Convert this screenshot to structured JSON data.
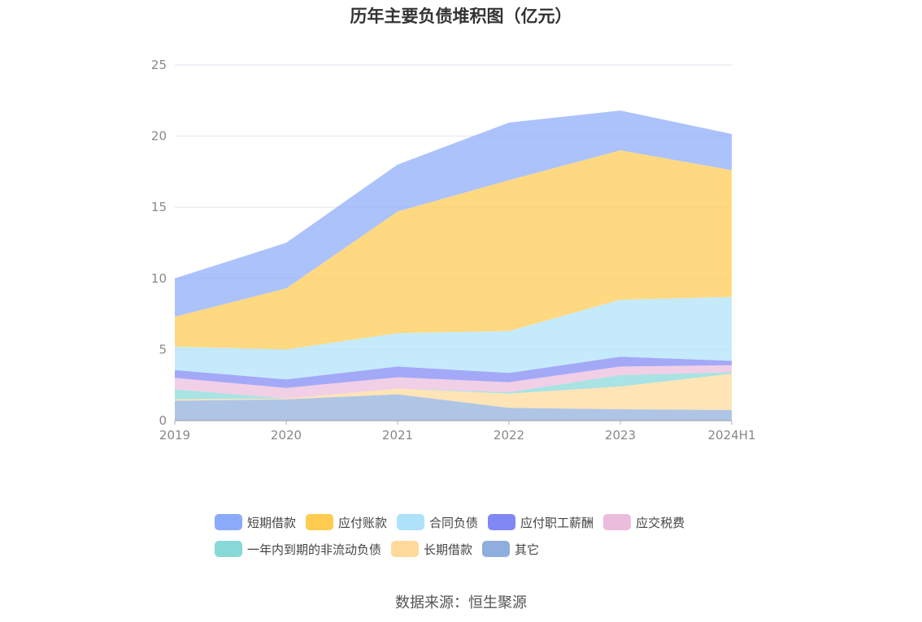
{
  "chart_data": {
    "type": "area",
    "stacked": true,
    "title": "历年主要负债堆积图（亿元）",
    "categories": [
      "2019",
      "2020",
      "2021",
      "2022",
      "2023",
      "2024H1"
    ],
    "ylim": [
      0,
      25
    ],
    "yticks": [
      0,
      5,
      10,
      15,
      20,
      25
    ],
    "grid": true,
    "legend_position": "bottom",
    "series": [
      {
        "name": "其它",
        "color": "#8faedd",
        "values": [
          1.4,
          1.5,
          1.85,
          0.9,
          0.8,
          0.75
        ]
      },
      {
        "name": "长期借款",
        "color": "#ffd99a",
        "values": [
          0.1,
          0.05,
          0.4,
          1.0,
          1.6,
          2.55
        ]
      },
      {
        "name": "一年内到期的非流动负债",
        "color": "#88d8d8",
        "values": [
          0.7,
          0.0,
          0.0,
          0.1,
          0.8,
          0.1
        ]
      },
      {
        "name": "应交税费",
        "color": "#ecbcdc",
        "values": [
          0.8,
          0.75,
          0.8,
          0.7,
          0.6,
          0.5
        ]
      },
      {
        "name": "应付职工薪酬",
        "color": "#8088f4",
        "values": [
          0.55,
          0.6,
          0.75,
          0.65,
          0.7,
          0.3
        ]
      },
      {
        "name": "合同负债",
        "color": "#aee2fa",
        "values": [
          1.65,
          2.1,
          2.35,
          2.95,
          4.0,
          4.5
        ]
      },
      {
        "name": "应付账款",
        "color": "#ffcb50",
        "values": [
          2.1,
          4.3,
          8.55,
          10.6,
          10.5,
          8.9
        ]
      },
      {
        "name": "短期借款",
        "color": "#8caafa",
        "values": [
          2.7,
          3.2,
          3.3,
          4.05,
          2.8,
          2.55
        ]
      }
    ]
  },
  "legend_rows": [
    [
      {
        "label": "短期借款",
        "color": "#8caafa"
      },
      {
        "label": "应付账款",
        "color": "#ffcb50"
      },
      {
        "label": "合同负债",
        "color": "#aee2fa"
      },
      {
        "label": "应付职工薪酬",
        "color": "#8088f4"
      },
      {
        "label": "应交税费",
        "color": "#ecbcdc"
      }
    ],
    [
      {
        "label": "一年内到期的非流动负债",
        "color": "#88d8d8"
      },
      {
        "label": "长期借款",
        "color": "#ffd99a"
      },
      {
        "label": "其它",
        "color": "#8faedd"
      }
    ]
  ],
  "source": "数据来源：恒生聚源"
}
